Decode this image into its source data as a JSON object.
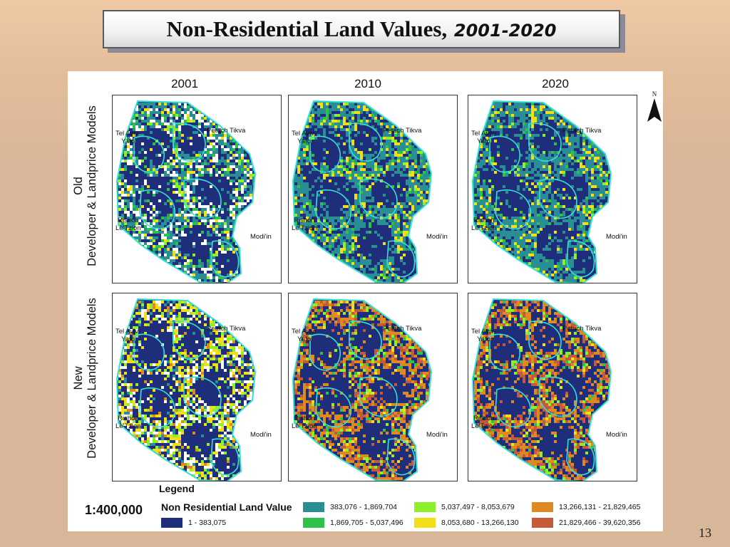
{
  "slide": {
    "title_main": "Non-Residential Land Values,",
    "title_years": "2001-2020",
    "page_number": "13"
  },
  "map": {
    "years": [
      "2001",
      "2010",
      "2020"
    ],
    "rows": [
      {
        "line1": "Old",
        "line2": "Developer & Landprice Models"
      },
      {
        "line1": "New",
        "line2": "Developer & Landprice Models"
      }
    ],
    "cities": {
      "tel_aviv": "Tel Aviv-\nYafo",
      "petach_tikva": "Petach Tikva",
      "rishon": "Rishon\nLe'Tzion",
      "modiin": "Modi'in"
    },
    "north_label": "N",
    "scale": "1:400,000"
  },
  "legend": {
    "title": "Legend",
    "subtitle": "Non Residential Land Value",
    "classes": [
      {
        "label": "1 - 383,075",
        "color": "#1f2e7a"
      },
      {
        "label": "383,076 - 1,869,704",
        "color": "#2a8f94"
      },
      {
        "label": "1,869,705 - 5,037,496",
        "color": "#2fc24a"
      },
      {
        "label": "5,037,497 - 8,053,679",
        "color": "#8ef02a"
      },
      {
        "label": "8,053,680 - 13,266,130",
        "color": "#f2df1a"
      },
      {
        "label": "13,266,131 - 21,829,465",
        "color": "#de8a22"
      },
      {
        "label": "21,829,466 - 39,620,356",
        "color": "#c45a3a"
      }
    ]
  },
  "colors": {
    "navy": "#1f2e7a",
    "teal": "#2a8f94",
    "green": "#2fc24a",
    "lime": "#8ef02a",
    "yellow": "#f2df1a",
    "orange": "#de8a22",
    "brick": "#c45a3a",
    "boundary": "#36e0d2"
  }
}
